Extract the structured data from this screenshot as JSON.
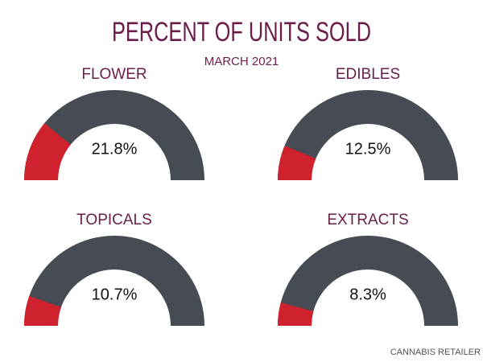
{
  "title": "PERCENT OF UNITS SOLD",
  "subtitle": "MARCH 2021",
  "source": "CANNABIS RETAILER",
  "chart_data": [
    {
      "type": "gauge",
      "title": "FLOWER",
      "values": [
        21.8
      ],
      "value_labels": [
        "21.8%"
      ],
      "ylim": [
        0,
        100
      ],
      "color": "#d0222e",
      "track_color": "#474c54"
    },
    {
      "type": "gauge",
      "title": "EDIBLES",
      "values": [
        12.5
      ],
      "value_labels": [
        "12.5%"
      ],
      "ylim": [
        0,
        100
      ],
      "color": "#d0222e",
      "track_color": "#474c54"
    },
    {
      "type": "gauge",
      "title": "TOPICALS",
      "values": [
        10.7
      ],
      "value_labels": [
        "10.7%"
      ],
      "ylim": [
        0,
        100
      ],
      "color": "#d0222e",
      "track_color": "#474c54"
    },
    {
      "type": "gauge",
      "title": "EXTRACTS",
      "values": [
        8.3
      ],
      "value_labels": [
        "8.3%"
      ],
      "ylim": [
        0,
        100
      ],
      "color": "#d0222e",
      "track_color": "#474c54"
    }
  ]
}
